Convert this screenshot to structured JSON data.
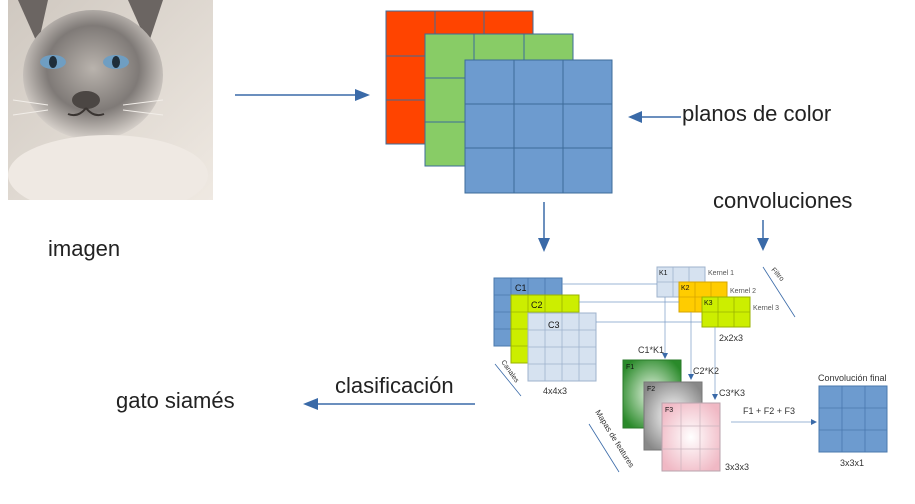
{
  "labels": {
    "imagen": "imagen",
    "planos_de_color": "planos de color",
    "convoluciones": "convoluciones",
    "clasificacion": "clasificación",
    "gato_siames": "gato siamés"
  },
  "diagram": {
    "channels": [
      "C1",
      "C2",
      "C3"
    ],
    "channels_caption": "Canales",
    "input_size": "4x4x3",
    "kernels": [
      "K1",
      "K2",
      "K3"
    ],
    "kernel_labels": [
      "Kernel 1",
      "Kernel 2",
      "Kernel 3"
    ],
    "filter_caption": "Filtro",
    "kernel_size": "2x2x3",
    "products": [
      "C1*K1",
      "C2*K2",
      "C3*K3"
    ],
    "feature_maps": [
      "F1",
      "F2",
      "F3"
    ],
    "feature_maps_caption": "Mapas de features",
    "feature_size": "3x3x3",
    "sum_formula": "F1 + F2 + F3",
    "final_title": "Convolución final",
    "final_size": "3x3x1"
  },
  "colors": {
    "red_plane": "#ff4400",
    "green_plane": "#88cc66",
    "blue_plane": "#6d9bcf",
    "arrow": "#3a6aa8",
    "grid_line": "#3d6b9a"
  },
  "icons": {
    "cat_photo": "siamese-cat-photo"
  }
}
